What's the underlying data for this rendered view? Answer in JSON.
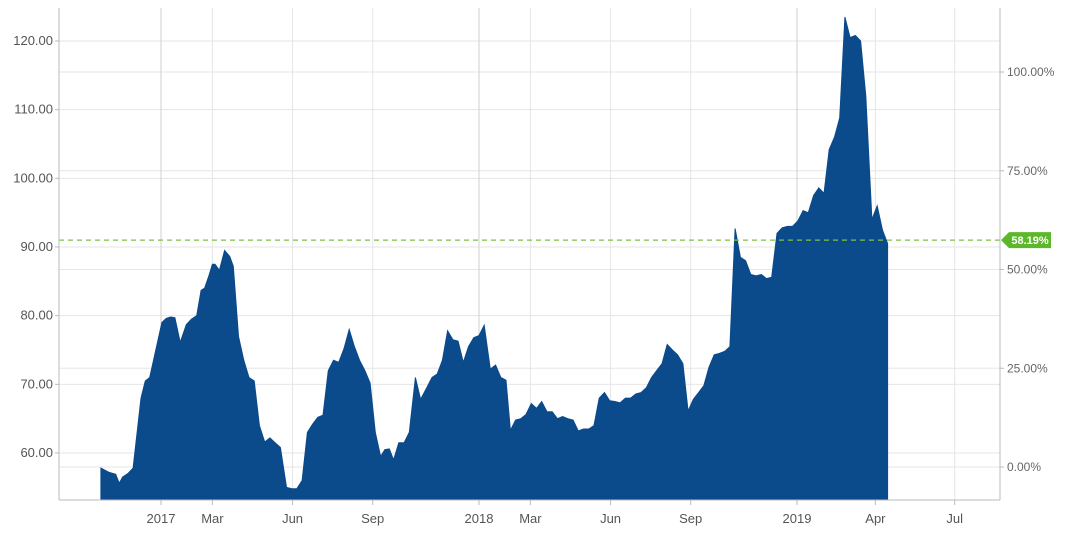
{
  "colors": {
    "area_fill": "#0b4a8b",
    "grid": "#e6e6e6",
    "axis": "#bbbbbb",
    "current_line": "#7dc242",
    "badge": "#5cb82a"
  },
  "chart_data": {
    "type": "area",
    "left_axis": {
      "ylim": [
        53,
        126
      ],
      "ticks": [
        {
          "value": 60,
          "label": "60.00"
        },
        {
          "value": 70,
          "label": "70.00"
        },
        {
          "value": 80,
          "label": "80.00"
        },
        {
          "value": 90,
          "label": "90.00"
        },
        {
          "value": 100,
          "label": "100.00"
        },
        {
          "value": 110,
          "label": "110.00"
        },
        {
          "value": 120,
          "label": "120.00"
        }
      ]
    },
    "right_axis": {
      "ticks": [
        {
          "value": 0,
          "label": "0.00%"
        },
        {
          "value": 25,
          "label": "25.00%"
        },
        {
          "value": 50,
          "label": "50.00%"
        },
        {
          "value": 75,
          "label": "75.00%"
        },
        {
          "value": 100,
          "label": "100.00%"
        }
      ]
    },
    "x_axis": {
      "ticks": [
        {
          "date": "2017-01-01",
          "label": "2017",
          "major": true
        },
        {
          "date": "2017-03-01",
          "label": "Mar",
          "major": false
        },
        {
          "date": "2017-06-01",
          "label": "Jun",
          "major": false
        },
        {
          "date": "2017-09-01",
          "label": "Sep",
          "major": false
        },
        {
          "date": "2018-01-01",
          "label": "2018",
          "major": true
        },
        {
          "date": "2018-03-01",
          "label": "Mar",
          "major": false
        },
        {
          "date": "2018-06-01",
          "label": "Jun",
          "major": false
        },
        {
          "date": "2018-09-01",
          "label": "Sep",
          "major": false
        },
        {
          "date": "2019-01-01",
          "label": "2019",
          "major": true
        },
        {
          "date": "2019-04-01",
          "label": "Apr",
          "major": false
        },
        {
          "date": "2019-07-01",
          "label": "Jul",
          "major": false
        }
      ]
    },
    "current": {
      "value": 91,
      "label": "58.19%"
    },
    "series": [
      {
        "points": [
          [
            "2016-10-24",
            57.8
          ],
          [
            "2016-11-02",
            57.2
          ],
          [
            "2016-11-10",
            56.9
          ],
          [
            "2016-11-14",
            55.6
          ],
          [
            "2016-11-18",
            56.5
          ],
          [
            "2016-11-24",
            57.0
          ],
          [
            "2016-11-30",
            57.8
          ],
          [
            "2016-12-05",
            63.5
          ],
          [
            "2016-12-09",
            68.0
          ],
          [
            "2016-12-14",
            70.5
          ],
          [
            "2016-12-19",
            71.0
          ],
          [
            "2016-12-26",
            75.0
          ],
          [
            "2017-01-02",
            79.0
          ],
          [
            "2017-01-07",
            79.6
          ],
          [
            "2017-01-12",
            79.8
          ],
          [
            "2017-01-17",
            79.7
          ],
          [
            "2017-01-23",
            76.1
          ],
          [
            "2017-01-30",
            78.7
          ],
          [
            "2017-02-05",
            79.5
          ],
          [
            "2017-02-11",
            80.0
          ],
          [
            "2017-02-16",
            83.7
          ],
          [
            "2017-02-20",
            84.0
          ],
          [
            "2017-02-25",
            85.8
          ],
          [
            "2017-03-01",
            87.5
          ],
          [
            "2017-03-04",
            87.5
          ],
          [
            "2017-03-09",
            86.6
          ],
          [
            "2017-03-15",
            89.5
          ],
          [
            "2017-03-21",
            88.6
          ],
          [
            "2017-03-25",
            87.2
          ],
          [
            "2017-03-31",
            77.0
          ],
          [
            "2017-04-06",
            73.5
          ],
          [
            "2017-04-12",
            71.0
          ],
          [
            "2017-04-18",
            70.5
          ],
          [
            "2017-04-24",
            64.0
          ],
          [
            "2017-04-30",
            61.6
          ],
          [
            "2017-05-06",
            62.2
          ],
          [
            "2017-05-12",
            61.5
          ],
          [
            "2017-05-18",
            60.8
          ],
          [
            "2017-05-25",
            55.0
          ],
          [
            "2017-05-31",
            54.8
          ],
          [
            "2017-06-06",
            54.8
          ],
          [
            "2017-06-12",
            56.0
          ],
          [
            "2017-06-18",
            63.0
          ],
          [
            "2017-06-24",
            64.2
          ],
          [
            "2017-06-30",
            65.2
          ],
          [
            "2017-07-06",
            65.5
          ],
          [
            "2017-07-12",
            72.0
          ],
          [
            "2017-07-18",
            73.5
          ],
          [
            "2017-07-24",
            73.2
          ],
          [
            "2017-07-30",
            75.2
          ],
          [
            "2017-08-05",
            78.0
          ],
          [
            "2017-08-11",
            75.5
          ],
          [
            "2017-08-17",
            73.5
          ],
          [
            "2017-08-23",
            72.0
          ],
          [
            "2017-08-29",
            70.2
          ],
          [
            "2017-09-04",
            63.0
          ],
          [
            "2017-09-10",
            59.5
          ],
          [
            "2017-09-15",
            60.5
          ],
          [
            "2017-09-20",
            60.6
          ],
          [
            "2017-09-25",
            59.0
          ],
          [
            "2017-10-01",
            61.5
          ],
          [
            "2017-10-07",
            61.5
          ],
          [
            "2017-10-13",
            63.0
          ],
          [
            "2017-10-20",
            71.0
          ],
          [
            "2017-10-26",
            67.8
          ],
          [
            "2017-11-02",
            69.5
          ],
          [
            "2017-11-08",
            71.0
          ],
          [
            "2017-11-14",
            71.5
          ],
          [
            "2017-11-20",
            73.5
          ],
          [
            "2017-11-26",
            77.8
          ],
          [
            "2017-12-02",
            76.5
          ],
          [
            "2017-12-08",
            76.3
          ],
          [
            "2017-12-14",
            73.2
          ],
          [
            "2017-12-20",
            75.5
          ],
          [
            "2017-12-26",
            76.8
          ],
          [
            "2018-01-01",
            77.1
          ],
          [
            "2018-01-07",
            78.6
          ],
          [
            "2018-01-14",
            72.2
          ],
          [
            "2018-01-20",
            72.8
          ],
          [
            "2018-01-26",
            71.0
          ],
          [
            "2018-02-01",
            70.6
          ],
          [
            "2018-02-06",
            63.3
          ],
          [
            "2018-02-12",
            64.8
          ],
          [
            "2018-02-18",
            65.0
          ],
          [
            "2018-02-24",
            65.6
          ],
          [
            "2018-03-02",
            67.2
          ],
          [
            "2018-03-08",
            66.5
          ],
          [
            "2018-03-14",
            67.5
          ],
          [
            "2018-03-20",
            66.0
          ],
          [
            "2018-03-26",
            66.0
          ],
          [
            "2018-04-01",
            65.0
          ],
          [
            "2018-04-07",
            65.3
          ],
          [
            "2018-04-13",
            65.0
          ],
          [
            "2018-04-19",
            64.8
          ],
          [
            "2018-04-25",
            63.2
          ],
          [
            "2018-05-01",
            63.5
          ],
          [
            "2018-05-07",
            63.5
          ],
          [
            "2018-05-13",
            64.0
          ],
          [
            "2018-05-19",
            68.0
          ],
          [
            "2018-05-25",
            68.8
          ],
          [
            "2018-05-31",
            67.6
          ],
          [
            "2018-06-06",
            67.5
          ],
          [
            "2018-06-12",
            67.3
          ],
          [
            "2018-06-18",
            68.0
          ],
          [
            "2018-06-24",
            68.0
          ],
          [
            "2018-06-30",
            68.6
          ],
          [
            "2018-07-06",
            68.8
          ],
          [
            "2018-07-12",
            69.5
          ],
          [
            "2018-07-18",
            71.0
          ],
          [
            "2018-07-24",
            72.0
          ],
          [
            "2018-07-30",
            73.0
          ],
          [
            "2018-08-05",
            75.8
          ],
          [
            "2018-08-11",
            75.0
          ],
          [
            "2018-08-17",
            74.3
          ],
          [
            "2018-08-23",
            73.0
          ],
          [
            "2018-08-29",
            66.1
          ],
          [
            "2018-09-04",
            67.8
          ],
          [
            "2018-09-10",
            68.8
          ],
          [
            "2018-09-16",
            69.8
          ],
          [
            "2018-09-22",
            72.5
          ],
          [
            "2018-09-28",
            74.3
          ],
          [
            "2018-10-04",
            74.5
          ],
          [
            "2018-10-10",
            74.8
          ],
          [
            "2018-10-16",
            75.5
          ],
          [
            "2018-10-22",
            92.7
          ],
          [
            "2018-10-28",
            88.5
          ],
          [
            "2018-11-03",
            88.0
          ],
          [
            "2018-11-09",
            86.0
          ],
          [
            "2018-11-15",
            85.8
          ],
          [
            "2018-11-21",
            86.0
          ],
          [
            "2018-11-27",
            85.4
          ],
          [
            "2018-12-03",
            85.6
          ],
          [
            "2018-12-09",
            92.0
          ],
          [
            "2018-12-15",
            92.8
          ],
          [
            "2018-12-21",
            93.0
          ],
          [
            "2018-12-27",
            93.0
          ],
          [
            "2019-01-02",
            93.8
          ],
          [
            "2019-01-08",
            95.3
          ],
          [
            "2019-01-14",
            95.0
          ],
          [
            "2019-01-20",
            97.5
          ],
          [
            "2019-01-26",
            98.6
          ],
          [
            "2019-02-01",
            97.8
          ],
          [
            "2019-02-07",
            104.2
          ],
          [
            "2019-02-13",
            106.0
          ],
          [
            "2019-02-19",
            108.8
          ],
          [
            "2019-02-25",
            123.5
          ],
          [
            "2019-03-03",
            120.5
          ],
          [
            "2019-03-09",
            120.8
          ],
          [
            "2019-03-15",
            120.0
          ],
          [
            "2019-03-21",
            112.0
          ],
          [
            "2019-03-28",
            94.0
          ],
          [
            "2019-04-03",
            96.0
          ],
          [
            "2019-04-09",
            92.5
          ],
          [
            "2019-04-15",
            90.5
          ]
        ]
      }
    ]
  }
}
